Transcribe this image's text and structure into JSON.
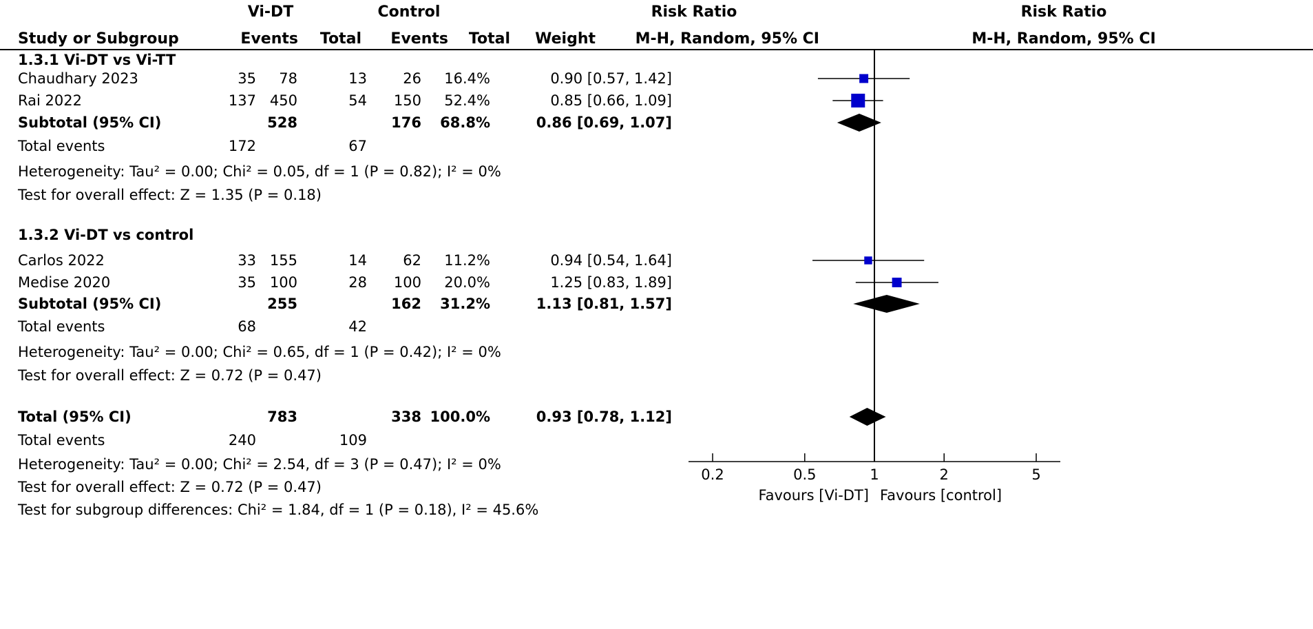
{
  "header": {
    "group1": "Vi-DT",
    "group2": "Control",
    "effect_text_title": "Risk Ratio",
    "effect_plot_title": "Risk Ratio",
    "col_study": "Study or Subgroup",
    "col_events1": "Events",
    "col_total1": "Total",
    "col_events2": "Events",
    "col_total2": "Total",
    "col_weight": "Weight",
    "col_ci": "M-H, Random, 95% CI",
    "plot_method": "M-H, Random, 95% CI"
  },
  "chart_data": {
    "type": "forest",
    "measure": "Risk Ratio",
    "x_scale": "log",
    "x_ticks": [
      0.2,
      0.5,
      1,
      2,
      5
    ],
    "x_tick_labels": [
      "0.2",
      "0.5",
      "1",
      "2",
      "5"
    ],
    "xlim": [
      0.2,
      5
    ],
    "null_line": 1,
    "favours_left": "Favours [Vi-DT]",
    "favours_right": "Favours [control]",
    "subgroups": [
      {
        "title": "1.3.1 Vi-DT vs Vi-TT",
        "studies": [
          {
            "name": "Chaudhary 2023",
            "events1": "35",
            "total1": "78",
            "events2": "13",
            "total2": "26",
            "weight": "16.4%",
            "ci_text": "0.90 [0.57, 1.42]",
            "rr": 0.9,
            "lo": 0.57,
            "hi": 1.42,
            "w": 16.4
          },
          {
            "name": "Rai 2022",
            "events1": "137",
            "total1": "450",
            "events2": "54",
            "total2": "150",
            "weight": "52.4%",
            "ci_text": "0.85 [0.66, 1.09]",
            "rr": 0.85,
            "lo": 0.66,
            "hi": 1.09,
            "w": 52.4
          }
        ],
        "subtotal": {
          "label": "Subtotal (95% CI)",
          "total1": "528",
          "total2": "176",
          "weight": "68.8%",
          "ci_text": "0.86 [0.69, 1.07]",
          "rr": 0.86,
          "lo": 0.69,
          "hi": 1.07
        },
        "total_events": {
          "label": "Total events",
          "events1": "172",
          "events2": "67"
        },
        "heterogeneity": "Heterogeneity: Tau² = 0.00; Chi² = 0.05, df = 1 (P = 0.82); I² = 0%",
        "overall": "Test for overall effect: Z = 1.35 (P = 0.18)"
      },
      {
        "title": "1.3.2 Vi-DT vs control",
        "studies": [
          {
            "name": "Carlos 2022",
            "events1": "33",
            "total1": "155",
            "events2": "14",
            "total2": "62",
            "weight": "11.2%",
            "ci_text": "0.94 [0.54, 1.64]",
            "rr": 0.94,
            "lo": 0.54,
            "hi": 1.64,
            "w": 11.2
          },
          {
            "name": "Medise 2020",
            "events1": "35",
            "total1": "100",
            "events2": "28",
            "total2": "100",
            "weight": "20.0%",
            "ci_text": "1.25 [0.83, 1.89]",
            "rr": 1.25,
            "lo": 0.83,
            "hi": 1.89,
            "w": 20.0
          }
        ],
        "subtotal": {
          "label": "Subtotal (95% CI)",
          "total1": "255",
          "total2": "162",
          "weight": "31.2%",
          "ci_text": "1.13 [0.81, 1.57]",
          "rr": 1.13,
          "lo": 0.81,
          "hi": 1.57
        },
        "total_events": {
          "label": "Total events",
          "events1": "68",
          "events2": "42"
        },
        "heterogeneity": "Heterogeneity: Tau² = 0.00; Chi² = 0.65, df = 1 (P = 0.42); I² = 0%",
        "overall": "Test for overall effect: Z = 0.72 (P = 0.47)"
      }
    ],
    "total": {
      "label": "Total (95% CI)",
      "total1": "783",
      "total2": "338",
      "weight": "100.0%",
      "ci_text": "0.93 [0.78, 1.12]",
      "rr": 0.93,
      "lo": 0.78,
      "hi": 1.12
    },
    "total_events": {
      "label": "Total events",
      "events1": "240",
      "events2": "109"
    },
    "heterogeneity": "Heterogeneity: Tau² = 0.00; Chi² = 2.54, df = 3 (P = 0.47); I² = 0%",
    "overall": "Test for overall effect: Z = 0.72 (P = 0.47)",
    "subgroup_differences": "Test for subgroup differences: Chi² = 1.84, df = 1 (P = 0.18), I² = 45.6%"
  },
  "colors": {
    "marker": "#0000cc",
    "diamond": "#000000",
    "line": "#000000"
  }
}
